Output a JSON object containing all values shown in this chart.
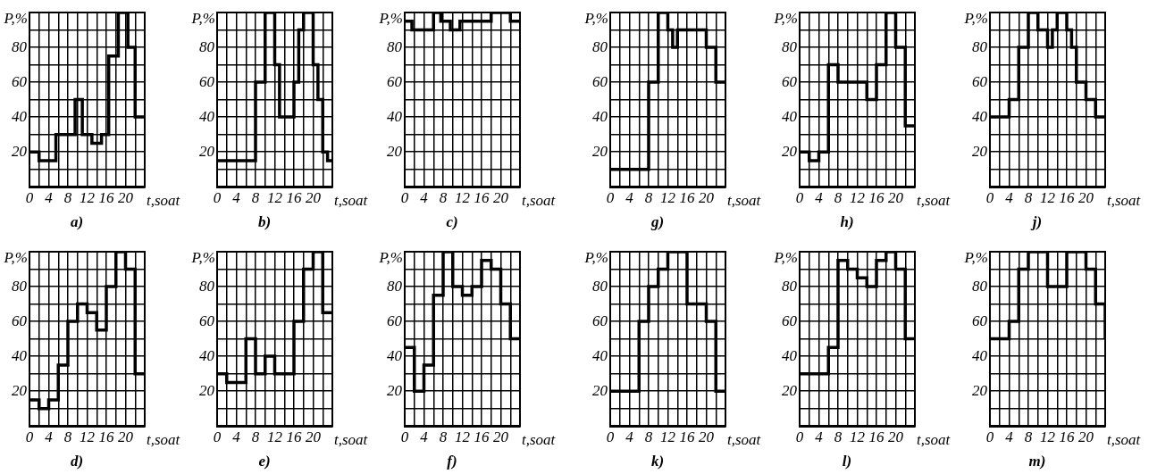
{
  "chart_data": [
    {
      "type": "step",
      "title": "a)",
      "xlabel": "t,soat",
      "ylabel": "P,%",
      "color": "#000000",
      "grid": true,
      "xlim": [
        0,
        24
      ],
      "ylim": [
        0,
        100
      ],
      "xticks": [
        0,
        {
          "value": 2,
          "label": null
        },
        4,
        {
          "value": 6,
          "label": null
        },
        8,
        {
          "value": 10,
          "label": null
        },
        12,
        {
          "value": 14,
          "label": null
        },
        16,
        {
          "value": 18,
          "label": null
        },
        20,
        {
          "value": 22,
          "label": null
        },
        {
          "value": 24,
          "label": null
        }
      ],
      "yticks": [
        {
          "value": 0,
          "label": null
        },
        {
          "value": 10,
          "label": null
        },
        20,
        {
          "value": 30,
          "label": null
        },
        40,
        {
          "value": 50,
          "label": null
        },
        60,
        {
          "value": 70,
          "label": null
        },
        80,
        {
          "value": 90,
          "label": null
        },
        {
          "value": 100,
          "label": null
        }
      ],
      "x": [
        0,
        2,
        5.5,
        9.5,
        11,
        13,
        15,
        16.5,
        18.5,
        20.5,
        22,
        24
      ],
      "values": [
        20,
        15,
        30,
        50,
        30,
        25,
        30,
        75,
        100,
        80,
        40,
        40
      ]
    },
    {
      "type": "step",
      "title": "b)",
      "xlabel": "t,soat",
      "ylabel": "P,%",
      "color": "#000000",
      "grid": true,
      "xlim": [
        0,
        24
      ],
      "ylim": [
        0,
        100
      ],
      "xticks": [
        0,
        {
          "value": 2,
          "label": null
        },
        4,
        {
          "value": 6,
          "label": null
        },
        8,
        {
          "value": 10,
          "label": null
        },
        12,
        {
          "value": 14,
          "label": null
        },
        16,
        {
          "value": 18,
          "label": null
        },
        20,
        {
          "value": 22,
          "label": null
        },
        {
          "value": 24,
          "label": null
        }
      ],
      "yticks": [
        {
          "value": 0,
          "label": null
        },
        {
          "value": 10,
          "label": null
        },
        20,
        {
          "value": 30,
          "label": null
        },
        40,
        {
          "value": 50,
          "label": null
        },
        60,
        {
          "value": 70,
          "label": null
        },
        80,
        {
          "value": 90,
          "label": null
        },
        {
          "value": 100,
          "label": null
        }
      ],
      "x": [
        0,
        8,
        10,
        12,
        13,
        16,
        17,
        18,
        20,
        21,
        22,
        23,
        24
      ],
      "values": [
        15,
        60,
        100,
        70,
        40,
        60,
        90,
        100,
        70,
        50,
        20,
        15,
        15
      ]
    },
    {
      "type": "step",
      "title": "c)",
      "xlabel": "t,soat",
      "ylabel": "P,%",
      "color": "#000000",
      "grid": true,
      "xlim": [
        0,
        24
      ],
      "ylim": [
        0,
        100
      ],
      "xticks": [
        0,
        {
          "value": 2,
          "label": null
        },
        4,
        {
          "value": 6,
          "label": null
        },
        8,
        {
          "value": 10,
          "label": null
        },
        12,
        {
          "value": 14,
          "label": null
        },
        16,
        {
          "value": 18,
          "label": null
        },
        20,
        {
          "value": 22,
          "label": null
        },
        {
          "value": 24,
          "label": null
        }
      ],
      "yticks": [
        {
          "value": 0,
          "label": null
        },
        {
          "value": 10,
          "label": null
        },
        20,
        {
          "value": 30,
          "label": null
        },
        40,
        {
          "value": 50,
          "label": null
        },
        60,
        {
          "value": 70,
          "label": null
        },
        80,
        {
          "value": 90,
          "label": null
        },
        {
          "value": 100,
          "label": null
        }
      ],
      "x": [
        0,
        1.5,
        6,
        7.5,
        9.5,
        11.5,
        18,
        22,
        24
      ],
      "values": [
        95,
        90,
        100,
        95,
        90,
        95,
        100,
        95,
        95
      ]
    },
    {
      "type": "step",
      "title": "g)",
      "xlabel": "t,soat",
      "ylabel": "P,%",
      "color": "#000000",
      "grid": true,
      "xlim": [
        0,
        24
      ],
      "ylim": [
        0,
        100
      ],
      "xticks": [
        0,
        {
          "value": 2,
          "label": null
        },
        4,
        {
          "value": 6,
          "label": null
        },
        8,
        {
          "value": 10,
          "label": null
        },
        12,
        {
          "value": 14,
          "label": null
        },
        16,
        {
          "value": 18,
          "label": null
        },
        20,
        {
          "value": 22,
          "label": null
        },
        {
          "value": 24,
          "label": null
        }
      ],
      "yticks": [
        {
          "value": 0,
          "label": null
        },
        {
          "value": 10,
          "label": null
        },
        20,
        {
          "value": 30,
          "label": null
        },
        40,
        {
          "value": 50,
          "label": null
        },
        60,
        {
          "value": 70,
          "label": null
        },
        80,
        {
          "value": 90,
          "label": null
        },
        {
          "value": 100,
          "label": null
        }
      ],
      "x": [
        0,
        8,
        10,
        12,
        13,
        14,
        20,
        22,
        24
      ],
      "values": [
        10,
        60,
        100,
        90,
        80,
        90,
        80,
        60,
        60
      ]
    },
    {
      "type": "step",
      "title": "h)",
      "xlabel": "t,soat",
      "ylabel": "P,%",
      "color": "#000000",
      "grid": true,
      "xlim": [
        0,
        24
      ],
      "ylim": [
        0,
        100
      ],
      "xticks": [
        0,
        {
          "value": 2,
          "label": null
        },
        4,
        {
          "value": 6,
          "label": null
        },
        8,
        {
          "value": 10,
          "label": null
        },
        12,
        {
          "value": 14,
          "label": null
        },
        16,
        {
          "value": 18,
          "label": null
        },
        20,
        {
          "value": 22,
          "label": null
        },
        {
          "value": 24,
          "label": null
        }
      ],
      "yticks": [
        {
          "value": 0,
          "label": null
        },
        {
          "value": 10,
          "label": null
        },
        20,
        {
          "value": 30,
          "label": null
        },
        40,
        {
          "value": 50,
          "label": null
        },
        60,
        {
          "value": 70,
          "label": null
        },
        80,
        {
          "value": 90,
          "label": null
        },
        {
          "value": 100,
          "label": null
        }
      ],
      "x": [
        0,
        2,
        4,
        6,
        8,
        14,
        16,
        18,
        20,
        22,
        24
      ],
      "values": [
        20,
        15,
        20,
        70,
        60,
        50,
        70,
        100,
        80,
        35,
        35
      ]
    },
    {
      "type": "step",
      "title": "j)",
      "xlabel": "t,soat",
      "ylabel": "P,%",
      "color": "#000000",
      "grid": true,
      "xlim": [
        0,
        24
      ],
      "ylim": [
        0,
        100
      ],
      "xticks": [
        0,
        {
          "value": 2,
          "label": null
        },
        4,
        {
          "value": 6,
          "label": null
        },
        8,
        {
          "value": 10,
          "label": null
        },
        12,
        {
          "value": 14,
          "label": null
        },
        16,
        {
          "value": 18,
          "label": null
        },
        20,
        {
          "value": 22,
          "label": null
        },
        {
          "value": 24,
          "label": null
        }
      ],
      "yticks": [
        {
          "value": 0,
          "label": null
        },
        {
          "value": 10,
          "label": null
        },
        20,
        {
          "value": 30,
          "label": null
        },
        40,
        {
          "value": 50,
          "label": null
        },
        60,
        {
          "value": 70,
          "label": null
        },
        80,
        {
          "value": 90,
          "label": null
        },
        {
          "value": 100,
          "label": null
        }
      ],
      "x": [
        0,
        4,
        6,
        8,
        10,
        12,
        13,
        14,
        16,
        17,
        18,
        20,
        22,
        24
      ],
      "values": [
        40,
        50,
        80,
        100,
        90,
        80,
        90,
        100,
        90,
        80,
        60,
        50,
        40,
        40
      ]
    },
    {
      "type": "step",
      "title": "d)",
      "xlabel": "t,soat",
      "ylabel": "P,%",
      "color": "#000000",
      "grid": true,
      "xlim": [
        0,
        24
      ],
      "ylim": [
        0,
        100
      ],
      "xticks": [
        0,
        {
          "value": 2,
          "label": null
        },
        4,
        {
          "value": 6,
          "label": null
        },
        8,
        {
          "value": 10,
          "label": null
        },
        12,
        {
          "value": 14,
          "label": null
        },
        16,
        {
          "value": 18,
          "label": null
        },
        20,
        {
          "value": 22,
          "label": null
        },
        {
          "value": 24,
          "label": null
        }
      ],
      "yticks": [
        {
          "value": 0,
          "label": null
        },
        {
          "value": 10,
          "label": null
        },
        20,
        {
          "value": 30,
          "label": null
        },
        40,
        {
          "value": 50,
          "label": null
        },
        60,
        {
          "value": 70,
          "label": null
        },
        80,
        {
          "value": 90,
          "label": null
        },
        {
          "value": 100,
          "label": null
        }
      ],
      "x": [
        0,
        2,
        4,
        6,
        8,
        10,
        12,
        14,
        16,
        18,
        20,
        22,
        24
      ],
      "values": [
        15,
        10,
        15,
        35,
        60,
        70,
        65,
        55,
        80,
        100,
        90,
        30,
        30
      ]
    },
    {
      "type": "step",
      "title": "e)",
      "xlabel": "t,soat",
      "ylabel": "P,%",
      "color": "#000000",
      "grid": true,
      "xlim": [
        0,
        24
      ],
      "ylim": [
        0,
        100
      ],
      "xticks": [
        0,
        {
          "value": 2,
          "label": null
        },
        4,
        {
          "value": 6,
          "label": null
        },
        8,
        {
          "value": 10,
          "label": null
        },
        12,
        {
          "value": 14,
          "label": null
        },
        16,
        {
          "value": 18,
          "label": null
        },
        20,
        {
          "value": 22,
          "label": null
        },
        {
          "value": 24,
          "label": null
        }
      ],
      "yticks": [
        {
          "value": 0,
          "label": null
        },
        {
          "value": 10,
          "label": null
        },
        20,
        {
          "value": 30,
          "label": null
        },
        40,
        {
          "value": 50,
          "label": null
        },
        60,
        {
          "value": 70,
          "label": null
        },
        80,
        {
          "value": 90,
          "label": null
        },
        {
          "value": 100,
          "label": null
        }
      ],
      "x": [
        0,
        2,
        6,
        8,
        10,
        12,
        16,
        18,
        20,
        22,
        24
      ],
      "values": [
        30,
        25,
        50,
        30,
        40,
        30,
        60,
        90,
        100,
        65,
        65
      ]
    },
    {
      "type": "step",
      "title": "f)",
      "xlabel": "t,soat",
      "ylabel": "P,%",
      "color": "#000000",
      "grid": true,
      "xlim": [
        0,
        24
      ],
      "ylim": [
        0,
        100
      ],
      "xticks": [
        0,
        {
          "value": 2,
          "label": null
        },
        4,
        {
          "value": 6,
          "label": null
        },
        8,
        {
          "value": 10,
          "label": null
        },
        12,
        {
          "value": 14,
          "label": null
        },
        16,
        {
          "value": 18,
          "label": null
        },
        20,
        {
          "value": 22,
          "label": null
        },
        {
          "value": 24,
          "label": null
        }
      ],
      "yticks": [
        {
          "value": 0,
          "label": null
        },
        {
          "value": 10,
          "label": null
        },
        20,
        {
          "value": 30,
          "label": null
        },
        40,
        {
          "value": 50,
          "label": null
        },
        60,
        {
          "value": 70,
          "label": null
        },
        80,
        {
          "value": 90,
          "label": null
        },
        {
          "value": 100,
          "label": null
        }
      ],
      "x": [
        0,
        2,
        4,
        6,
        8,
        10,
        12,
        14,
        16,
        18,
        20,
        22,
        24
      ],
      "values": [
        45,
        20,
        35,
        75,
        100,
        80,
        75,
        80,
        95,
        90,
        70,
        50,
        50
      ]
    },
    {
      "type": "step",
      "title": "k)",
      "xlabel": "t,soat",
      "ylabel": "P,%",
      "color": "#000000",
      "grid": true,
      "xlim": [
        0,
        24
      ],
      "ylim": [
        0,
        100
      ],
      "xticks": [
        0,
        {
          "value": 2,
          "label": null
        },
        4,
        {
          "value": 6,
          "label": null
        },
        8,
        {
          "value": 10,
          "label": null
        },
        12,
        {
          "value": 14,
          "label": null
        },
        16,
        {
          "value": 18,
          "label": null
        },
        20,
        {
          "value": 22,
          "label": null
        },
        {
          "value": 24,
          "label": null
        }
      ],
      "yticks": [
        {
          "value": 0,
          "label": null
        },
        {
          "value": 10,
          "label": null
        },
        20,
        {
          "value": 30,
          "label": null
        },
        40,
        {
          "value": 50,
          "label": null
        },
        60,
        {
          "value": 70,
          "label": null
        },
        80,
        {
          "value": 90,
          "label": null
        },
        {
          "value": 100,
          "label": null
        }
      ],
      "x": [
        0,
        6,
        8,
        10,
        12,
        16,
        20,
        22,
        24
      ],
      "values": [
        20,
        60,
        80,
        90,
        100,
        70,
        60,
        20,
        20
      ]
    },
    {
      "type": "step",
      "title": "l)",
      "xlabel": "t,soat",
      "ylabel": "P,%",
      "color": "#000000",
      "grid": true,
      "xlim": [
        0,
        24
      ],
      "ylim": [
        0,
        100
      ],
      "xticks": [
        0,
        {
          "value": 2,
          "label": null
        },
        4,
        {
          "value": 6,
          "label": null
        },
        8,
        {
          "value": 10,
          "label": null
        },
        12,
        {
          "value": 14,
          "label": null
        },
        16,
        {
          "value": 18,
          "label": null
        },
        20,
        {
          "value": 22,
          "label": null
        },
        {
          "value": 24,
          "label": null
        }
      ],
      "yticks": [
        {
          "value": 0,
          "label": null
        },
        {
          "value": 10,
          "label": null
        },
        20,
        {
          "value": 30,
          "label": null
        },
        40,
        {
          "value": 50,
          "label": null
        },
        60,
        {
          "value": 70,
          "label": null
        },
        80,
        {
          "value": 90,
          "label": null
        },
        {
          "value": 100,
          "label": null
        }
      ],
      "x": [
        0,
        6,
        8,
        10,
        12,
        14,
        16,
        18,
        20,
        22,
        24
      ],
      "values": [
        30,
        45,
        95,
        90,
        85,
        80,
        95,
        100,
        90,
        50,
        50
      ]
    },
    {
      "type": "step",
      "title": "m)",
      "xlabel": "t,soat",
      "ylabel": "P,%",
      "color": "#000000",
      "grid": true,
      "xlim": [
        0,
        24
      ],
      "ylim": [
        0,
        100
      ],
      "xticks": [
        0,
        {
          "value": 2,
          "label": null
        },
        4,
        {
          "value": 6,
          "label": null
        },
        8,
        {
          "value": 10,
          "label": null
        },
        12,
        {
          "value": 14,
          "label": null
        },
        16,
        {
          "value": 18,
          "label": null
        },
        20,
        {
          "value": 22,
          "label": null
        },
        {
          "value": 24,
          "label": null
        }
      ],
      "yticks": [
        {
          "value": 0,
          "label": null
        },
        {
          "value": 10,
          "label": null
        },
        20,
        {
          "value": 30,
          "label": null
        },
        40,
        {
          "value": 50,
          "label": null
        },
        60,
        {
          "value": 70,
          "label": null
        },
        80,
        {
          "value": 90,
          "label": null
        },
        {
          "value": 100,
          "label": null
        }
      ],
      "x": [
        0,
        4,
        6,
        8,
        12,
        16,
        20,
        22,
        24
      ],
      "values": [
        50,
        60,
        90,
        100,
        80,
        100,
        90,
        70,
        50
      ]
    }
  ]
}
